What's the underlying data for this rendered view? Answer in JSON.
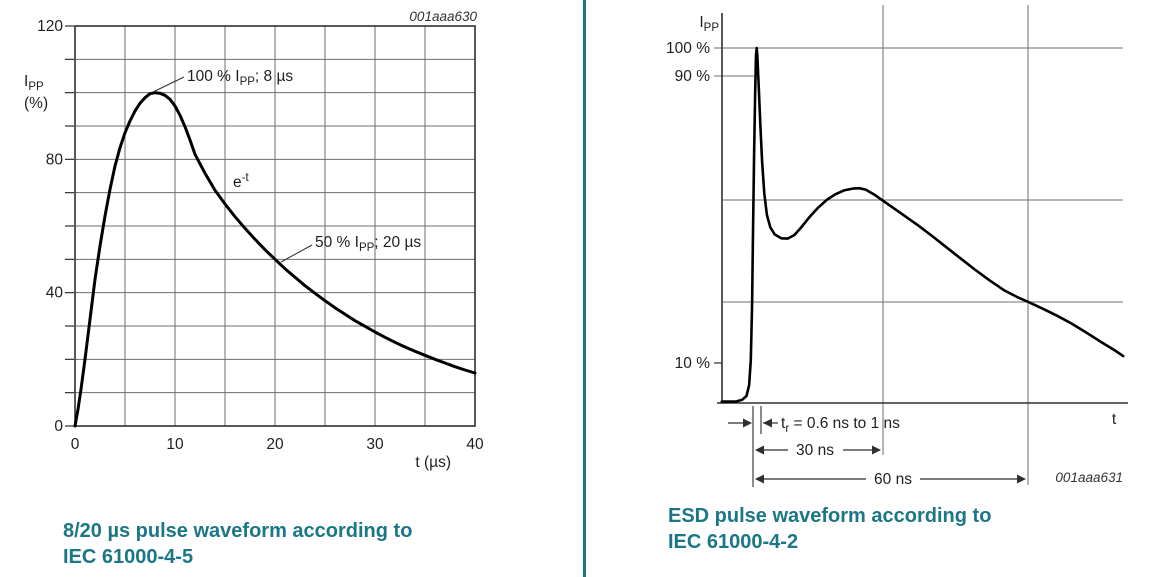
{
  "theme": {
    "teal": "#1b7786",
    "grid_gray": "#6e6e6e",
    "axis_dark": "#2f2f2f",
    "curve_black": "#000000",
    "text_dark": "#1f1f1f",
    "figure_id_gray": "#333333",
    "background": "#ffffff"
  },
  "captions": {
    "left": {
      "line1": "8/20 µs pulse waveform according to",
      "line2": "IEC 61000-4-5"
    },
    "right": {
      "line1": "ESD pulse waveform according to",
      "line2": "IEC 61000-4-2"
    }
  },
  "chart_data": [
    {
      "type": "line",
      "title": "8/20 µs pulse waveform according to IEC 61000-4-5",
      "figure_id": "001aaa630",
      "xlabel": "t (µs)",
      "ylabel_lines": [
        [
          {
            "t": "I"
          },
          {
            "t": "PP",
            "sub": true
          }
        ],
        [
          {
            "t": "(%)"
          }
        ]
      ],
      "xlim": [
        0,
        40
      ],
      "ylim": [
        0,
        120
      ],
      "grid": {
        "x_step": 5,
        "y_step": 10,
        "on": true
      },
      "x_ticks": [
        {
          "value": 0,
          "label": "0"
        },
        {
          "value": 10,
          "label": "10"
        },
        {
          "value": 20,
          "label": "20"
        },
        {
          "value": 30,
          "label": "30"
        },
        {
          "value": 40,
          "label": "40"
        }
      ],
      "y_ticks": [
        {
          "value": 0,
          "label": "0"
        },
        {
          "value": 40,
          "label": "40"
        },
        {
          "value": 80,
          "label": "80"
        },
        {
          "value": 120,
          "label": "120"
        }
      ],
      "annotations": [
        {
          "id": "peak-marker",
          "segments": [
            {
              "t": "100 % I"
            },
            {
              "t": "PP",
              "sub": true
            },
            {
              "t": "; 8 µs"
            }
          ]
        },
        {
          "id": "decay-law",
          "segments": [
            {
              "t": "e"
            },
            {
              "t": "-t",
              "sup": true
            }
          ]
        },
        {
          "id": "half-marker",
          "segments": [
            {
              "t": "50 % I"
            },
            {
              "t": "PP",
              "sub": true
            },
            {
              "t": "; 20 µs"
            }
          ]
        }
      ],
      "series": [
        {
          "name": "surge-current-pct-vs-us",
          "points": [
            [
              0,
              0
            ],
            [
              0.3,
              5
            ],
            [
              0.6,
              11
            ],
            [
              1,
              20
            ],
            [
              1.5,
              32
            ],
            [
              2,
              44
            ],
            [
              2.5,
              54
            ],
            [
              3,
              63
            ],
            [
              3.5,
              71
            ],
            [
              4,
              78
            ],
            [
              4.5,
              83.5
            ],
            [
              5,
              88
            ],
            [
              5.5,
              91.5
            ],
            [
              6,
              94.5
            ],
            [
              6.5,
              96.8
            ],
            [
              7,
              98.5
            ],
            [
              7.5,
              99.7
            ],
            [
              8,
              100
            ],
            [
              8.5,
              99.8
            ],
            [
              9,
              99.2
            ],
            [
              9.5,
              98
            ],
            [
              10,
              96
            ],
            [
              10.5,
              93.2
            ],
            [
              11,
              89.8
            ],
            [
              11.5,
              85.8
            ],
            [
              12,
              81.5
            ],
            [
              13,
              75.8
            ],
            [
              14,
              70.7
            ],
            [
              15,
              66.6
            ],
            [
              16,
              62.8
            ],
            [
              17,
              59.3
            ],
            [
              18,
              56
            ],
            [
              19,
              52.9
            ],
            [
              20,
              50
            ],
            [
              21,
              47.2
            ],
            [
              22,
              44.6
            ],
            [
              23,
              42.1
            ],
            [
              24,
              39.8
            ],
            [
              25,
              37.6
            ],
            [
              26,
              35.5
            ],
            [
              27,
              33.5
            ],
            [
              28,
              31.6
            ],
            [
              29,
              29.9
            ],
            [
              30,
              28.2
            ],
            [
              31,
              26.6
            ],
            [
              32,
              25.1
            ],
            [
              33,
              23.7
            ],
            [
              34,
              22.4
            ],
            [
              35,
              21.2
            ],
            [
              36,
              20
            ],
            [
              37,
              18.9
            ],
            [
              38,
              17.8
            ],
            [
              39,
              16.8
            ],
            [
              40,
              15.9
            ]
          ]
        }
      ]
    },
    {
      "type": "line",
      "title": "ESD pulse waveform according to IEC 61000-4-2",
      "figure_id": "001aaa631",
      "xlabel": "t",
      "x_unit": "ns",
      "ylabel_lines": [
        [
          {
            "t": "I"
          },
          {
            "t": "PP",
            "sub": true
          }
        ]
      ],
      "y_tick_labels": [
        {
          "value": 100,
          "label": "100 %"
        },
        {
          "value": 90,
          "label": "90 %"
        },
        {
          "value": 10,
          "label": "10 %"
        }
      ],
      "annotations": [
        {
          "id": "rise-time",
          "segments": [
            {
              "t": "t"
            },
            {
              "t": "r",
              "sub": true
            },
            {
              "t": " = 0.6 ns to 1 ns"
            }
          ]
        },
        {
          "id": "dim-30ns",
          "segments": [
            {
              "t": "30 ns"
            }
          ]
        },
        {
          "id": "dim-60ns",
          "segments": [
            {
              "t": "60 ns"
            }
          ]
        }
      ],
      "series": [
        {
          "name": "esd-current-pct-vs-ns",
          "points": [
            [
              -7.2,
              0.4
            ],
            [
              -4,
              0.4
            ],
            [
              -2.5,
              0.9
            ],
            [
              -1.5,
              2
            ],
            [
              -0.9,
              5
            ],
            [
              -0.5,
              12
            ],
            [
              -0.2,
              28
            ],
            [
              0,
              48
            ],
            [
              0.25,
              70
            ],
            [
              0.5,
              88
            ],
            [
              0.7,
              98
            ],
            [
              0.85,
              100
            ],
            [
              1,
              98
            ],
            [
              1.3,
              90
            ],
            [
              1.7,
              78
            ],
            [
              2.1,
              68
            ],
            [
              2.6,
              59
            ],
            [
              3.2,
              53
            ],
            [
              4,
              49.5
            ],
            [
              5,
              47.5
            ],
            [
              6.5,
              46.4
            ],
            [
              8,
              46.3
            ],
            [
              9.5,
              47.3
            ],
            [
              11,
              49.3
            ],
            [
              13,
              52.3
            ],
            [
              15,
              55
            ],
            [
              17,
              57.2
            ],
            [
              19,
              58.8
            ],
            [
              21,
              59.9
            ],
            [
              23,
              60.4
            ],
            [
              24.5,
              60.5
            ],
            [
              26,
              60.1
            ],
            [
              28,
              58.7
            ],
            [
              30,
              57
            ],
            [
              32.5,
              54.6
            ],
            [
              35,
              52.2
            ],
            [
              37.5,
              49.8
            ],
            [
              40,
              47.2
            ],
            [
              43,
              44
            ],
            [
              46,
              40.8
            ],
            [
              49,
              37.6
            ],
            [
              52,
              34.6
            ],
            [
              55,
              31.8
            ],
            [
              58,
              29.7
            ],
            [
              60,
              28.5
            ],
            [
              63,
              26.6
            ],
            [
              66,
              24.6
            ],
            [
              69,
              22.4
            ],
            [
              72,
              19.9
            ],
            [
              75,
              17.3
            ],
            [
              78,
              14.8
            ],
            [
              79.7,
              13.2
            ]
          ]
        }
      ]
    }
  ]
}
